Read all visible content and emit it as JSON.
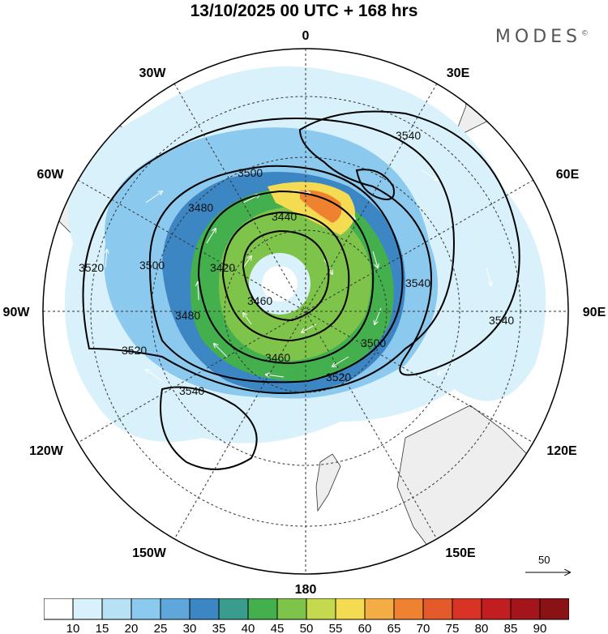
{
  "title": "13/10/2025  00 UTC  + 168 hrs",
  "brand": "MODES",
  "brand_mark": "©",
  "longitude_labels": {
    "n0": "0",
    "e30": "30E",
    "e60": "60E",
    "e90": "90E",
    "e120": "120E",
    "e150": "150E",
    "s180": "180",
    "w150": "150W",
    "w120": "120W",
    "w90": "90W",
    "w60": "60W",
    "w30": "30W"
  },
  "contour_labels": [
    "3440",
    "3460",
    "3460",
    "3480",
    "3480",
    "3500",
    "3500",
    "3500",
    "3420",
    "3540",
    "3540",
    "3540",
    "3520",
    "3520",
    "3520",
    "3540"
  ],
  "vector_reference": "50",
  "colorbar": {
    "ticks": [
      "10",
      "15",
      "20",
      "25",
      "30",
      "35",
      "40",
      "45",
      "50",
      "55",
      "60",
      "65",
      "70",
      "75",
      "80",
      "85",
      "90"
    ],
    "colors": [
      "#ffffff",
      "#d8f1fb",
      "#b7e2f6",
      "#8cc9ee",
      "#5fa6da",
      "#3c86c4",
      "#3a9c8c",
      "#43b04d",
      "#7ec44a",
      "#c4d94e",
      "#f4db52",
      "#f3ad44",
      "#ef8230",
      "#e55a2a",
      "#d83325",
      "#c21e22",
      "#a3151a",
      "#8a1214"
    ]
  }
}
